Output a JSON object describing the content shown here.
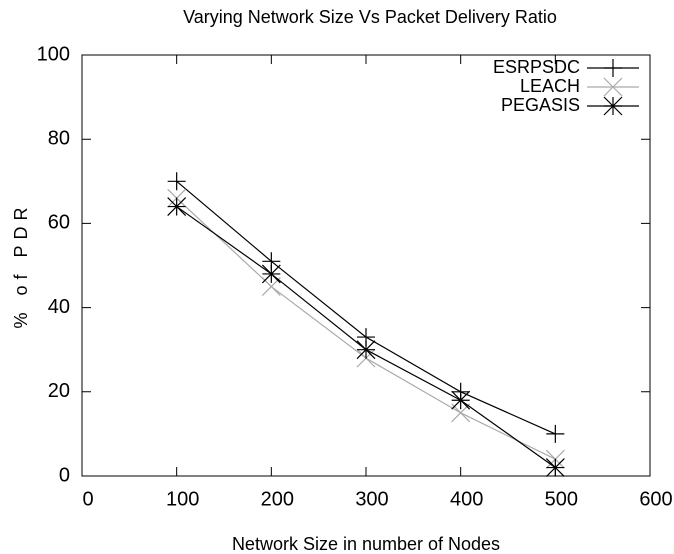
{
  "chart_data": {
    "type": "line",
    "title": "Varying Network Size Vs Packet Delivery Ratio",
    "x_label": "Network Size in number of Nodes",
    "y_label": "% of PDR",
    "x": [
      100,
      200,
      300,
      400,
      500
    ],
    "series": [
      {
        "name": "ESRPSDC",
        "color": "#000000",
        "marker": "plus",
        "values": [
          70,
          51,
          33,
          20,
          10
        ]
      },
      {
        "name": "LEACH",
        "color": "#aaaaaa",
        "marker": "cross",
        "values": [
          66,
          45,
          28,
          15,
          4
        ]
      },
      {
        "name": "PEGASIS",
        "color": "#000000",
        "marker": "star",
        "values": [
          64,
          48,
          30,
          18,
          2
        ]
      }
    ],
    "xlim": [
      0,
      600
    ],
    "xticks": [
      0,
      100,
      200,
      300,
      400,
      500,
      600
    ],
    "ylim": [
      0,
      100
    ],
    "yticks": [
      0,
      20,
      40,
      60,
      80,
      100
    ],
    "legend": "upper right"
  }
}
